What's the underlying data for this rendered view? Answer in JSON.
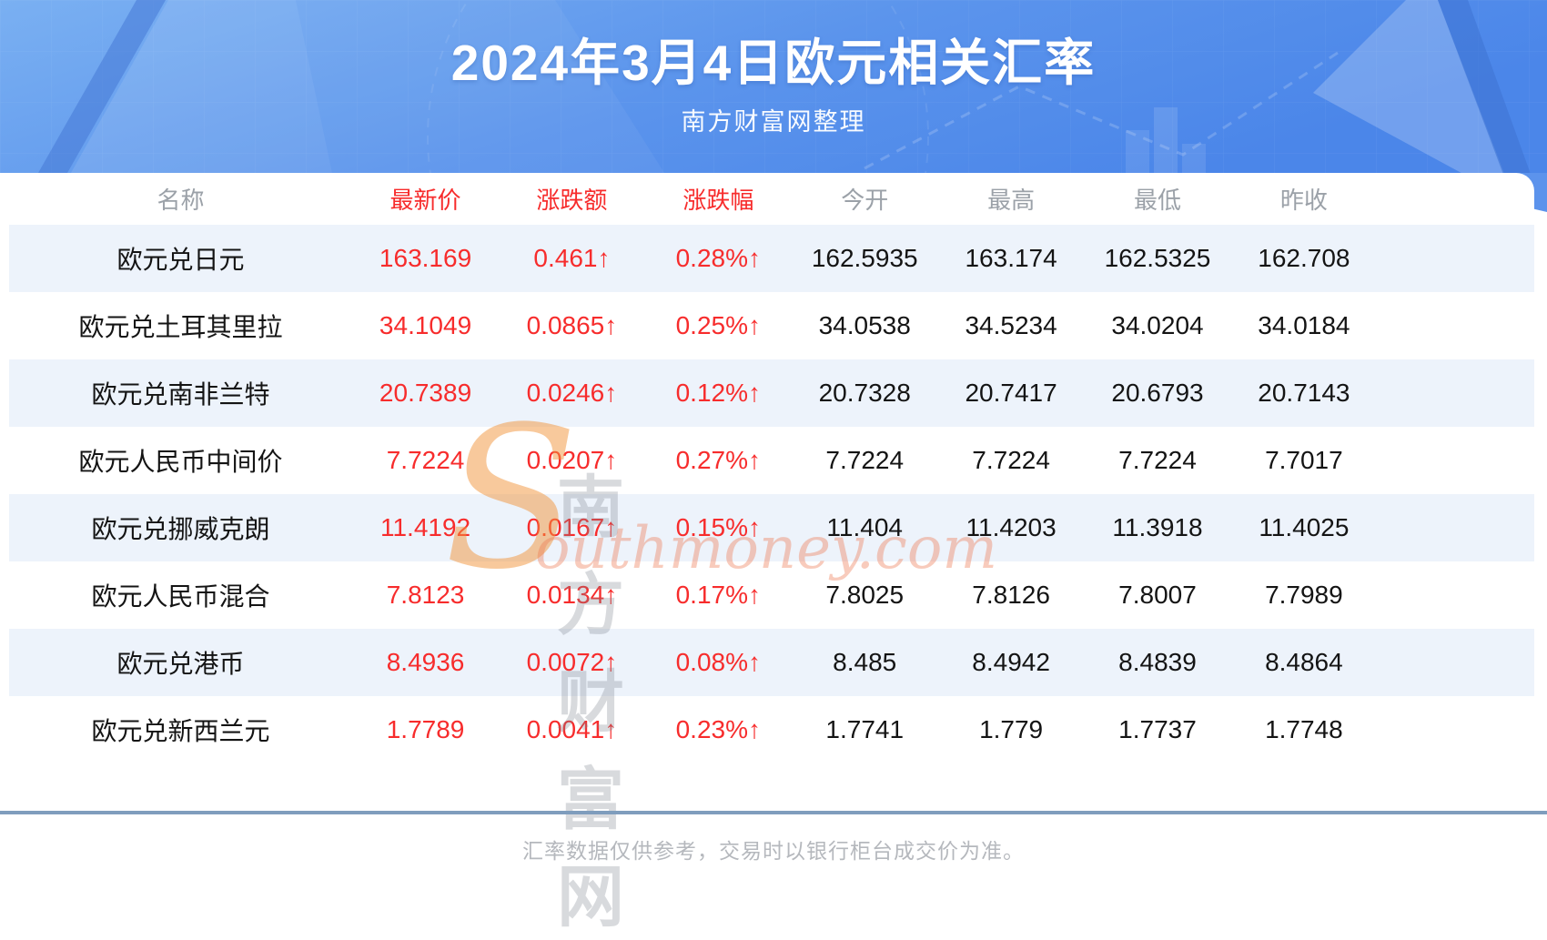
{
  "header": {
    "title": "2024年3月4日欧元相关汇率",
    "subtitle": "南方财富网整理"
  },
  "table": {
    "columns": [
      "名称",
      "最新价",
      "涨跌额",
      "涨跌幅",
      "今开",
      "最高",
      "最低",
      "昨收"
    ],
    "rows": [
      {
        "name": "欧元兑日元",
        "latest": "163.169",
        "change": "0.461↑",
        "change_pct": "0.28%↑",
        "open": "162.5935",
        "high": "163.174",
        "low": "162.5325",
        "prev_close": "162.708"
      },
      {
        "name": "欧元兑土耳其里拉",
        "latest": "34.1049",
        "change": "0.0865↑",
        "change_pct": "0.25%↑",
        "open": "34.0538",
        "high": "34.5234",
        "low": "34.0204",
        "prev_close": "34.0184"
      },
      {
        "name": "欧元兑南非兰特",
        "latest": "20.7389",
        "change": "0.0246↑",
        "change_pct": "0.12%↑",
        "open": "20.7328",
        "high": "20.7417",
        "low": "20.6793",
        "prev_close": "20.7143"
      },
      {
        "name": "欧元人民币中间价",
        "latest": "7.7224",
        "change": "0.0207↑",
        "change_pct": "0.27%↑",
        "open": "7.7224",
        "high": "7.7224",
        "low": "7.7224",
        "prev_close": "7.7017"
      },
      {
        "name": "欧元兑挪威克朗",
        "latest": "11.4192",
        "change": "0.0167↑",
        "change_pct": "0.15%↑",
        "open": "11.404",
        "high": "11.4203",
        "low": "11.3918",
        "prev_close": "11.4025"
      },
      {
        "name": "欧元人民币混合",
        "latest": "7.8123",
        "change": "0.0134↑",
        "change_pct": "0.17%↑",
        "open": "7.8025",
        "high": "7.8126",
        "low": "7.8007",
        "prev_close": "7.7989"
      },
      {
        "name": "欧元兑港币",
        "latest": "8.4936",
        "change": "0.0072↑",
        "change_pct": "0.08%↑",
        "open": "8.485",
        "high": "8.4942",
        "low": "8.4839",
        "prev_close": "8.4864"
      },
      {
        "name": "欧元兑新西兰元",
        "latest": "1.7789",
        "change": "0.0041↑",
        "change_pct": "0.23%↑",
        "open": "1.7741",
        "high": "1.779",
        "low": "1.7737",
        "prev_close": "1.7748"
      }
    ]
  },
  "watermark": {
    "s": "S",
    "cn": "南方财富网",
    "en": "outhmoney.com"
  },
  "footer": {
    "disclaimer": "汇率数据仅供参考，交易时以银行柜台成交价为准。"
  },
  "colors": {
    "accent_red": "#f72c2c",
    "header_gradient_start": "#7ab0f2",
    "header_gradient_end": "#4b86e9",
    "alt_row": "#edf3fb",
    "divider": "#7f9dbd",
    "column_header_text": "#9ba1a8",
    "value_text": "#141414",
    "footer_text": "#b5b8bd"
  }
}
